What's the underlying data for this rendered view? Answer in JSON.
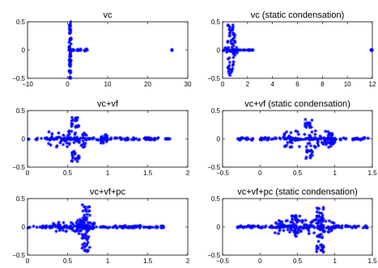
{
  "figure": {
    "background": "#ffffff",
    "marker_color": "#0000ff",
    "marker": "asterisk"
  },
  "chart_data": [
    {
      "type": "scatter",
      "title": "vc",
      "xlim": [
        -10,
        30
      ],
      "ylim": [
        -0.5,
        0.5
      ],
      "xticks": [
        "−10",
        "0",
        "10",
        "20",
        "30"
      ],
      "yticks": [
        "0.5",
        "0",
        "−0.5"
      ],
      "clusters": [
        {
          "x": [
            0,
            2.0
          ],
          "y": [
            0,
            0
          ]
        },
        {
          "x": [
            2.0,
            5.0
          ],
          "y": [
            -0.02,
            0.02
          ]
        },
        {
          "x": [
            0.4,
            0.9
          ],
          "y": [
            -0.5,
            0.5
          ]
        },
        {
          "x": [
            26,
            26.1
          ],
          "y": [
            0,
            0
          ]
        }
      ]
    },
    {
      "type": "scatter",
      "title": "vc (static condensation)",
      "xlim": [
        0,
        12
      ],
      "ylim": [
        -0.5,
        0.5
      ],
      "xticks": [
        "0",
        "2",
        "4",
        "6",
        "8",
        "10",
        "12"
      ],
      "yticks": [
        "0.5",
        "0",
        "−0.5"
      ],
      "clusters": [
        {
          "x": [
            0,
            1.2
          ],
          "y": [
            -0.05,
            0.05
          ]
        },
        {
          "x": [
            0.4,
            1.0
          ],
          "y": [
            -0.45,
            0.45
          ]
        },
        {
          "x": [
            1.0,
            2.7
          ],
          "y": [
            0,
            0
          ]
        },
        {
          "x": [
            11.9,
            12
          ],
          "y": [
            0,
            0
          ]
        }
      ]
    },
    {
      "type": "scatter",
      "title": "vc+vf",
      "xlim": [
        0,
        2
      ],
      "ylim": [
        -0.5,
        0.5
      ],
      "xticks": [
        "0",
        "0.5",
        "1",
        "1.5",
        "2"
      ],
      "yticks": [
        "0.5",
        "0",
        "−0.5"
      ],
      "clusters": [
        {
          "x": [
            0,
            1.65
          ],
          "y": [
            -0.02,
            0.02
          ]
        },
        {
          "x": [
            0.25,
            0.75
          ],
          "y": [
            -0.15,
            0.15
          ]
        },
        {
          "x": [
            0.55,
            0.65
          ],
          "y": [
            0.2,
            0.4
          ]
        },
        {
          "x": [
            0.55,
            0.65
          ],
          "y": [
            -0.4,
            -0.2
          ]
        },
        {
          "x": [
            0.9,
            1.0
          ],
          "y": [
            -0.08,
            0.08
          ]
        },
        {
          "x": [
            1.72,
            1.78
          ],
          "y": [
            0,
            0
          ]
        }
      ]
    },
    {
      "type": "scatter",
      "title": "vc+vf (static condensation)",
      "xlim": [
        -0.5,
        1.5
      ],
      "ylim": [
        -0.5,
        0.5
      ],
      "xticks": [
        "−0.5",
        "0",
        "0.5",
        "1",
        "1.5"
      ],
      "yticks": [
        "0.5",
        "0",
        "−0.5"
      ],
      "clusters": [
        {
          "x": [
            -0.3,
            1.45
          ],
          "y": [
            -0.02,
            0.02
          ]
        },
        {
          "x": [
            0.3,
            1.0
          ],
          "y": [
            -0.15,
            0.15
          ]
        },
        {
          "x": [
            0.6,
            0.7
          ],
          "y": [
            0.2,
            0.35
          ]
        },
        {
          "x": [
            0.6,
            0.7
          ],
          "y": [
            -0.35,
            -0.2
          ]
        },
        {
          "x": [
            0.9,
            1.0
          ],
          "y": [
            -0.1,
            0.1
          ]
        }
      ]
    },
    {
      "type": "scatter",
      "title": "vc+vf+pc",
      "xlim": [
        0,
        2
      ],
      "ylim": [
        -0.5,
        0.5
      ],
      "xticks": [
        "0",
        "0.5",
        "1",
        "1.5",
        "2"
      ],
      "yticks": [
        "0.5",
        "0",
        "−0.5"
      ],
      "clusters": [
        {
          "x": [
            0,
            1.7
          ],
          "y": [
            -0.02,
            0.02
          ]
        },
        {
          "x": [
            0.3,
            0.85
          ],
          "y": [
            -0.08,
            0.08
          ]
        },
        {
          "x": [
            0.68,
            0.78
          ],
          "y": [
            -0.45,
            0.4
          ]
        },
        {
          "x": [
            0.6,
            0.7
          ],
          "y": [
            -0.15,
            0.15
          ]
        }
      ]
    },
    {
      "type": "scatter",
      "title": "vc+vf+pc (static condensation)",
      "xlim": [
        -0.5,
        1.5
      ],
      "ylim": [
        -0.5,
        0.5
      ],
      "xticks": [
        "−0.5",
        "0",
        "0.5",
        "1",
        "1.5"
      ],
      "yticks": [
        "0.5",
        "0",
        "−0.5"
      ],
      "clusters": [
        {
          "x": [
            -0.3,
            1.45
          ],
          "y": [
            -0.02,
            0.02
          ]
        },
        {
          "x": [
            0.2,
            1.0
          ],
          "y": [
            -0.12,
            0.12
          ]
        },
        {
          "x": [
            0.75,
            0.85
          ],
          "y": [
            -0.45,
            0.35
          ]
        },
        {
          "x": [
            0.4,
            0.55
          ],
          "y": [
            -0.2,
            0.2
          ]
        }
      ]
    }
  ]
}
